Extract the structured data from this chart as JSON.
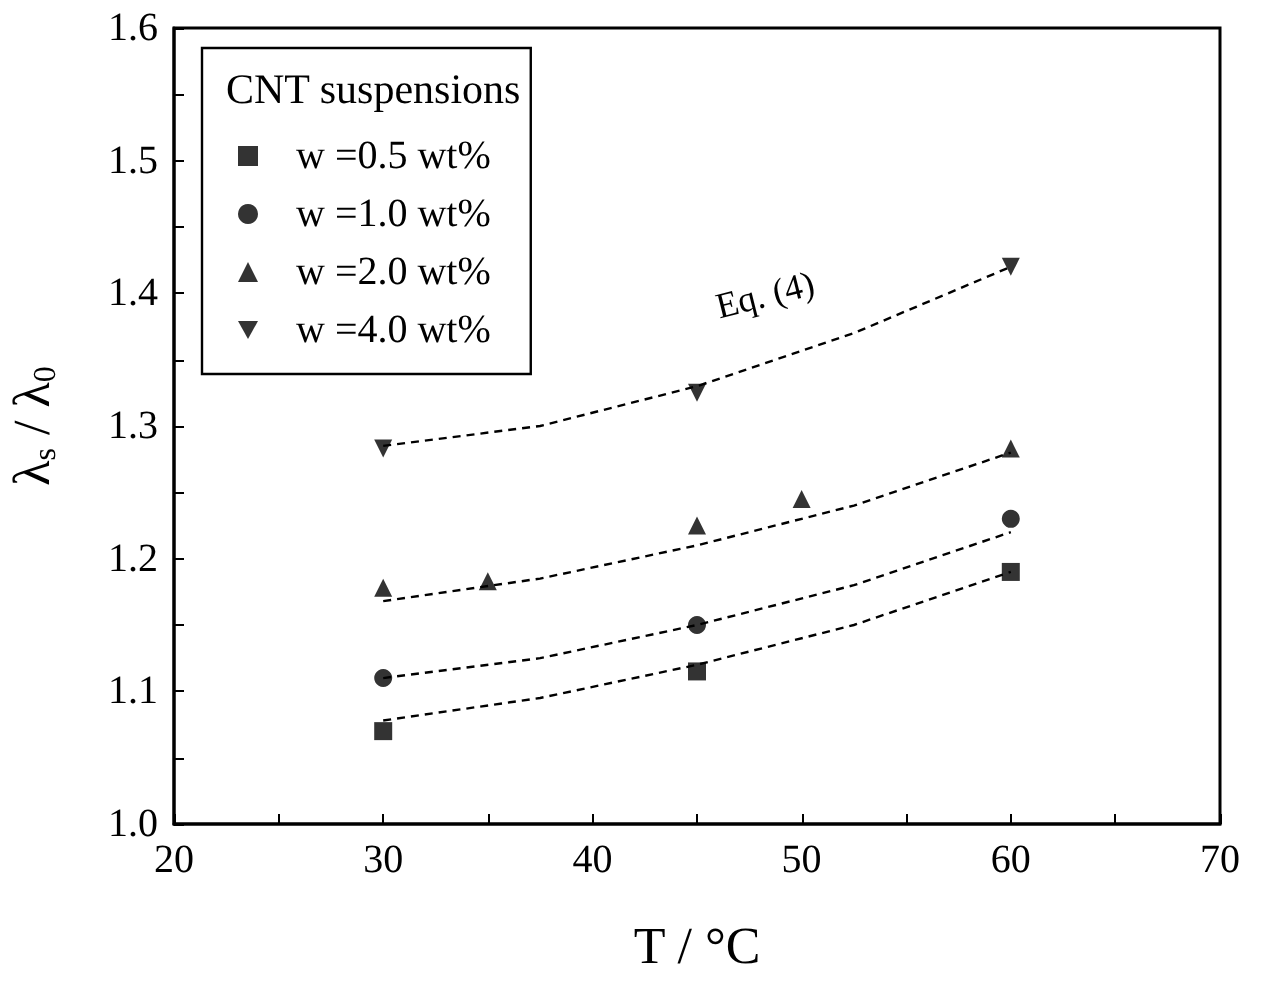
{
  "chart_data": {
    "type": "scatter",
    "xlabel": "T / °C",
    "ylabel": "λ$_{s}$ / λ$_{0}$",
    "legend_title": "CNT suspensions",
    "legend": "top left",
    "grid": false,
    "xlim": [
      20,
      70
    ],
    "xticks": [
      20,
      {
        "value": 25,
        "label": null
      },
      30,
      {
        "value": 35,
        "label": null
      },
      40,
      {
        "value": 45,
        "label": null
      },
      50,
      {
        "value": 55,
        "label": null
      },
      60,
      {
        "value": 65,
        "label": null
      },
      70
    ],
    "ylim": [
      1.0,
      1.6
    ],
    "yticks": [
      {
        "value": 1,
        "label": "1.0"
      },
      {
        "value": 1.05,
        "label": null
      },
      1.1,
      {
        "value": 1.15,
        "label": null
      },
      1.2,
      {
        "value": 1.25,
        "label": null
      },
      1.3,
      {
        "value": 1.35,
        "label": null
      },
      1.4,
      {
        "value": 1.45,
        "label": null
      },
      1.5,
      {
        "value": 1.55,
        "label": null
      },
      1.6
    ],
    "annotations": [
      "Eq. (4)"
    ],
    "series": [
      {
        "name": "w =0.5 wt%",
        "color": "#000000",
        "marker": "square",
        "x": [
          30,
          45,
          60
        ],
        "values": [
          1.07,
          1.115,
          1.19
        ]
      },
      {
        "name": "w =1.0 wt%",
        "color": "#000000",
        "marker": "circle",
        "x": [
          30,
          45,
          60
        ],
        "values": [
          1.11,
          1.15,
          1.23
        ]
      },
      {
        "name": "w =2.0 wt%",
        "color": "#000000",
        "marker": "triangle",
        "x": [
          30,
          35,
          45,
          50,
          60
        ],
        "values": [
          1.178,
          1.183,
          1.225,
          1.245,
          1.283
        ]
      },
      {
        "name": "w =4.0 wt%",
        "color": "#000000",
        "marker": "triangle-down",
        "x": [
          30,
          45,
          60
        ],
        "values": [
          1.283,
          1.325,
          1.42
        ]
      },
      {
        "type": "line",
        "color": "#000000",
        "marker": "none",
        "line_style": "dashed",
        "x": [
          30,
          37.5,
          45,
          52.5,
          60
        ],
        "values": [
          1.078,
          1.095,
          1.12,
          1.15,
          1.19
        ]
      },
      {
        "type": "line",
        "color": "#000000",
        "marker": "none",
        "line_style": "dashed",
        "x": [
          30,
          37.5,
          45,
          52.5,
          60
        ],
        "values": [
          1.11,
          1.125,
          1.15,
          1.18,
          1.22
        ]
      },
      {
        "type": "line",
        "color": "#000000",
        "marker": "none",
        "line_style": "dashed",
        "x": [
          30,
          37.5,
          45,
          52.5,
          60
        ],
        "values": [
          1.168,
          1.185,
          1.21,
          1.24,
          1.28
        ]
      },
      {
        "type": "line",
        "color": "#000000",
        "marker": "none",
        "line_style": "dashed",
        "x": [
          30,
          37.5,
          45,
          52.5,
          60
        ],
        "values": [
          1.285,
          1.3,
          1.33,
          1.37,
          1.42
        ]
      }
    ]
  }
}
